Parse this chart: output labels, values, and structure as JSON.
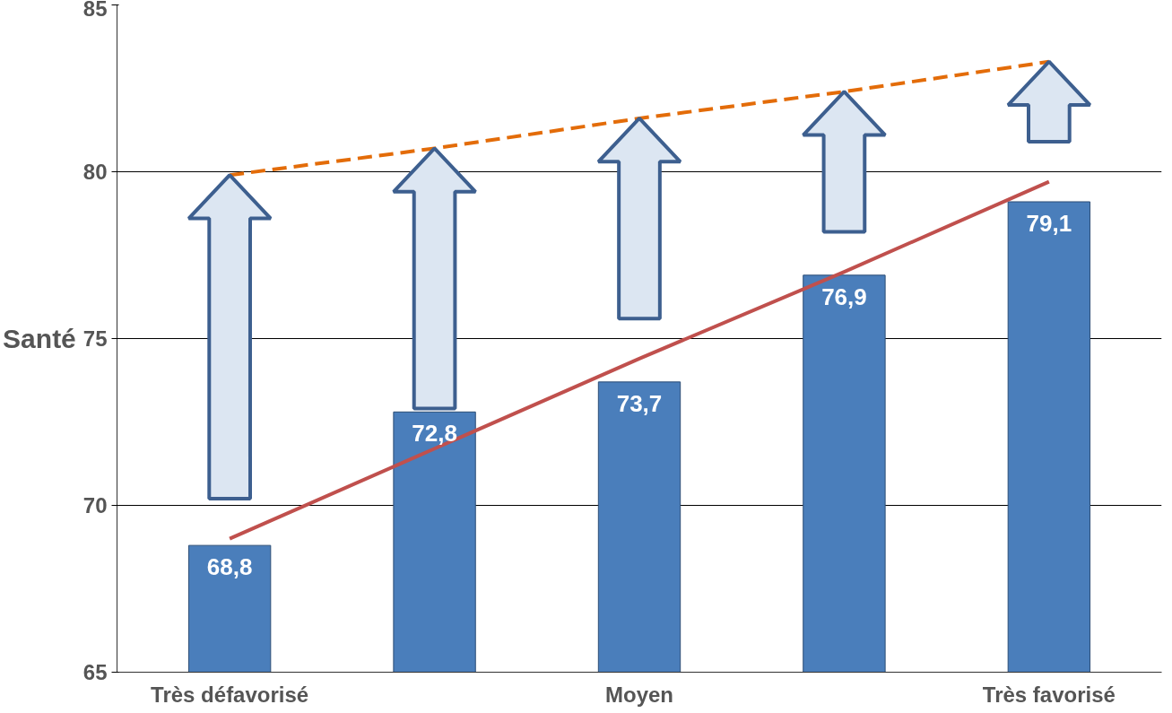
{
  "chart_data": {
    "type": "bar",
    "ylabel": "Santé",
    "categories": [
      "Très défavorisé",
      null,
      "Moyen",
      null,
      "Très favorisé"
    ],
    "series": [
      {
        "color": "#4a7ebb",
        "values": [
          68.8,
          72.8,
          73.7,
          76.9,
          79.1
        ],
        "value_labels": [
          "68,8",
          "72,8",
          "73,7",
          "76,9",
          "79,1"
        ]
      },
      {
        "type": "line",
        "color": "#c0504d",
        "line_style": "solid",
        "values": [
          69.0,
          71.7,
          74.4,
          77.0,
          79.7
        ]
      },
      {
        "type": "line",
        "color": "#e36c09",
        "line_style": "dashed",
        "values": [
          79.9,
          80.7,
          81.6,
          82.4,
          83.3
        ]
      }
    ],
    "ylim": [
      65,
      85
    ],
    "yticks": [
      65,
      70,
      75,
      80,
      85
    ],
    "grid": "y"
  }
}
